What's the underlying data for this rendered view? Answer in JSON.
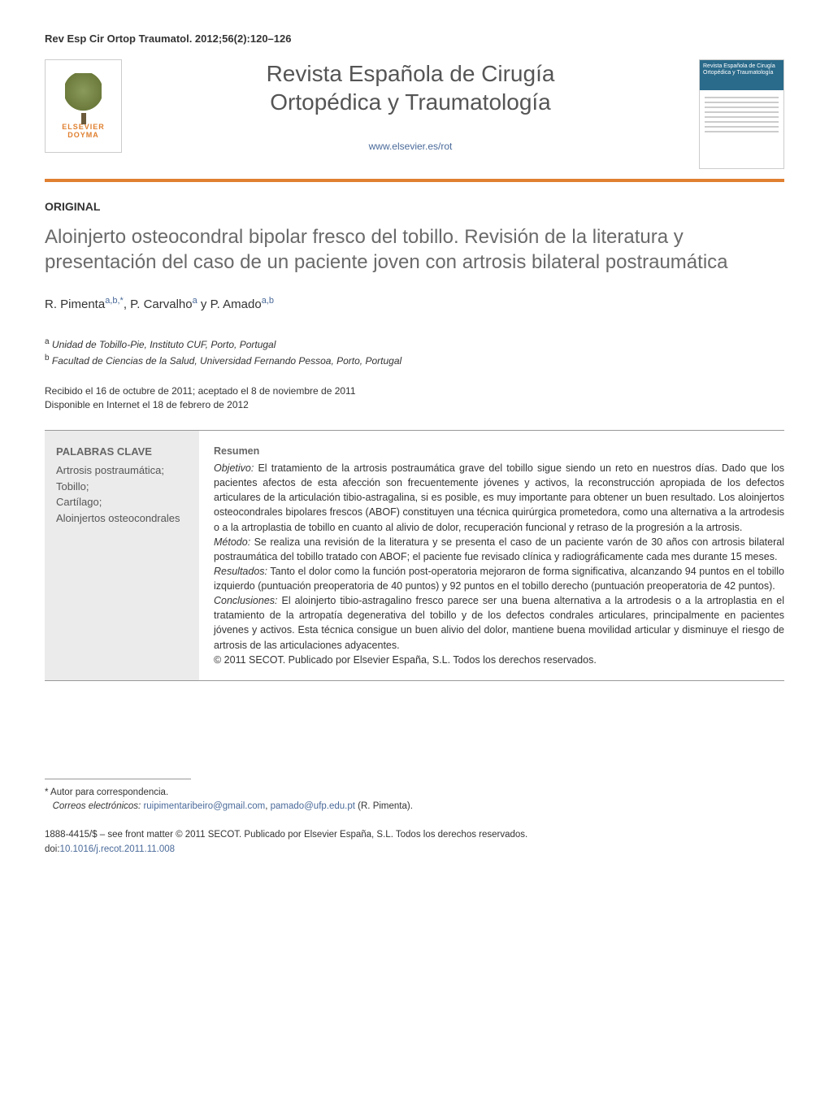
{
  "citation": "Rev Esp Cir Ortop Traumatol. 2012;56(2):120–126",
  "publisher": {
    "name": "ELSEVIER",
    "subname": "DOYMA"
  },
  "journal": {
    "title_line1": "Revista Española de Cirugía",
    "title_line2": "Ortopédica y Traumatología",
    "url": "www.elsevier.es/rot",
    "cover_title": "Revista Española de Cirugía Ortopédica y Traumatología"
  },
  "article": {
    "type": "ORIGINAL",
    "title": "Aloinjerto osteocondral bipolar fresco del tobillo. Revisión de la literatura y presentación del caso de un paciente joven con artrosis bilateral postraumática",
    "authors_html": "R. Pimenta",
    "author_sup1": "a,b,*",
    "author2": ", P. Carvalho",
    "author_sup2": "a",
    "author3": " y P. Amado",
    "author_sup3": "a,b"
  },
  "affiliations": {
    "a": "Unidad de Tobillo-Pie, Instituto CUF, Porto, Portugal",
    "b": "Facultad de Ciencias de la Salud, Universidad Fernando Pessoa, Porto, Portugal"
  },
  "dates": {
    "received_accepted": "Recibido el 16 de octubre de 2011; aceptado el 8 de noviembre de 2011",
    "online": "Disponible en Internet el 18 de febrero de 2012"
  },
  "keywords": {
    "heading": "PALABRAS CLAVE",
    "items": "Artrosis postraumática;\nTobillo;\nCartílago;\nAloinjertos osteocondrales"
  },
  "abstract": {
    "heading": "Resumen",
    "objetivo_label": "Objetivo:",
    "objetivo": " El tratamiento de la artrosis postraumática grave del tobillo sigue siendo un reto en nuestros días. Dado que los pacientes afectos de esta afección son frecuentemente jóvenes y activos, la reconstrucción apropiada de los defectos articulares de la articulación tibio-astragalina, si es posible, es muy importante para obtener un buen resultado. Los aloinjertos osteocondrales bipolares frescos (ABOF) constituyen una técnica quirúrgica prometedora, como una alternativa a la artrodesis o a la artroplastia de tobillo en cuanto al alivio de dolor, recuperación funcional y retraso de la progresión a la artrosis.",
    "metodo_label": "Método:",
    "metodo": " Se realiza una revisión de la literatura y se presenta el caso de un paciente varón de 30 años con artrosis bilateral postraumática del tobillo tratado con ABOF; el paciente fue revisado clínica y radiográficamente cada mes durante 15 meses.",
    "resultados_label": "Resultados:",
    "resultados": " Tanto el dolor como la función post-operatoria mejoraron de forma significativa, alcanzando 94 puntos en el tobillo izquierdo (puntuación preoperatoria de 40 puntos) y 92 puntos en el tobillo derecho (puntuación preoperatoria de 42 puntos).",
    "conclusiones_label": "Conclusiones:",
    "conclusiones": " El aloinjerto tibio-astragalino fresco parece ser una buena alternativa a la artrodesis o a la artroplastia en el tratamiento de la artropatía degenerativa del tobillo y de los defectos condrales articulares, principalmente en pacientes jóvenes y activos. Esta técnica consigue un buen alivio del dolor, mantiene buena movilidad articular y disminuye el riesgo de artrosis de las articulaciones adyacentes.",
    "copyright": "© 2011 SECOT. Publicado por Elsevier España, S.L. Todos los derechos reservados."
  },
  "correspondence": {
    "marker": "* Autor para correspondencia.",
    "label": "Correos electrónicos:",
    "email1": "ruipimentaribeiro@gmail.com",
    "sep": ", ",
    "email2": "pamado@ufp.edu.pt",
    "author": " (R. Pimenta)."
  },
  "footer": {
    "issn_line": "1888-4415/$ – see front matter © 2011 SECOT. Publicado por Elsevier España, S.L. Todos los derechos reservados.",
    "doi_label": "doi:",
    "doi": "10.1016/j.recot.2011.11.008"
  },
  "colors": {
    "accent": "#e08030",
    "link": "#4a6a9a",
    "gray_bg": "#ebebeb",
    "text": "#333333",
    "muted": "#6a6a6a"
  }
}
